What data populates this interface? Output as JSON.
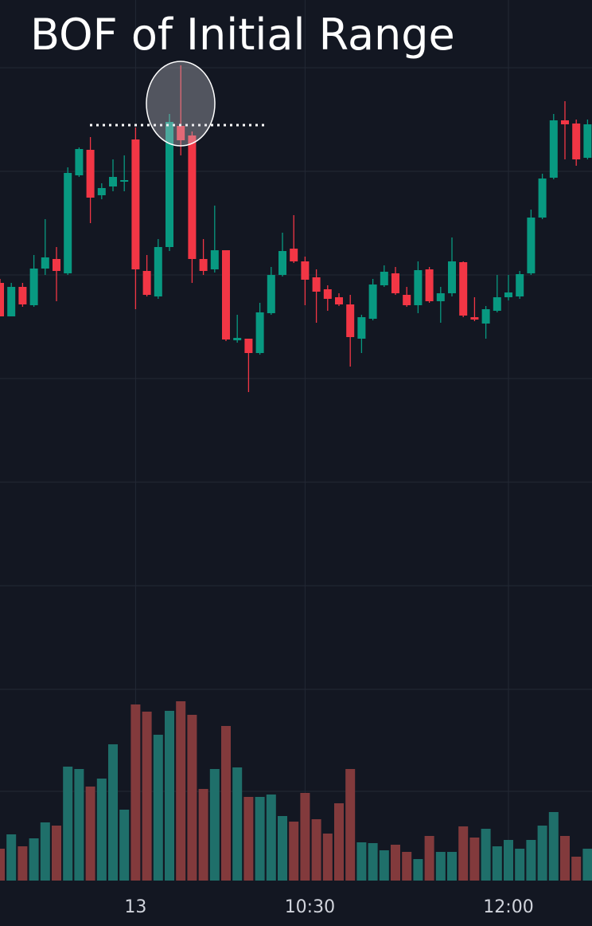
{
  "chart_data": {
    "type": "candlestick",
    "title": "BOF of Initial Range",
    "categories": [
      null,
      null,
      null,
      null,
      null,
      null,
      null,
      null,
      null,
      null,
      null,
      null,
      "13",
      null,
      null,
      null,
      null,
      null,
      null,
      null,
      null,
      null,
      null,
      null,
      null,
      null,
      null,
      "10:30",
      null,
      null,
      null,
      null,
      null,
      null,
      null,
      null,
      null,
      null,
      null,
      null,
      null,
      null,
      null,
      null,
      null,
      "12:00",
      null,
      null,
      null,
      null,
      null,
      null,
      null
    ],
    "open": [
      845,
      803,
      840,
      817,
      863,
      875,
      857,
      980,
      1012,
      955,
      966,
      972,
      1025,
      860,
      828,
      890,
      1042,
      1030,
      875,
      862,
      886,
      773,
      775,
      757,
      807,
      855,
      888,
      872,
      852,
      837,
      827,
      818,
      775,
      800,
      842,
      857,
      830,
      817,
      862,
      822,
      832,
      871,
      802,
      794,
      810,
      827,
      828,
      857,
      927,
      977,
      1049,
      1045,
      1002
    ],
    "high": [
      850,
      845,
      845,
      880,
      925,
      890,
      990,
      1015,
      1028,
      970,
      1000,
      1005,
      1040,
      880,
      900,
      1057,
      1118,
      1035,
      900,
      942,
      886,
      805,
      775,
      820,
      865,
      908,
      930,
      878,
      862,
      842,
      832,
      830,
      805,
      850,
      867,
      865,
      840,
      872,
      865,
      840,
      902,
      872,
      827,
      816,
      855,
      855,
      860,
      937,
      982,
      1057,
      1073,
      1050,
      1050
    ],
    "low": [
      803,
      803,
      815,
      815,
      855,
      822,
      855,
      978,
      920,
      950,
      960,
      960,
      812,
      828,
      825,
      885,
      1005,
      845,
      855,
      858,
      772,
      770,
      708,
      755,
      805,
      853,
      870,
      817,
      795,
      810,
      816,
      740,
      757,
      798,
      840,
      830,
      815,
      807,
      820,
      795,
      828,
      802,
      797,
      775,
      808,
      823,
      825,
      855,
      925,
      975,
      1000,
      992,
      1000
    ],
    "close": [
      803,
      840,
      818,
      863,
      877,
      860,
      983,
      1013,
      952,
      964,
      978,
      974,
      862,
      830,
      890,
      1047,
      1024,
      875,
      860,
      886,
      774,
      776,
      757,
      808,
      855,
      885,
      872,
      849,
      834,
      825,
      818,
      777,
      802,
      843,
      859,
      832,
      817,
      861,
      822,
      832,
      872,
      804,
      799,
      812,
      827,
      833,
      856,
      927,
      976,
      1049,
      1044,
      1000,
      1044
    ],
    "volume": [
      40,
      58,
      43,
      53,
      73,
      69,
      143,
      140,
      118,
      128,
      171,
      89,
      221,
      212,
      183,
      213,
      225,
      208,
      115,
      140,
      194,
      142,
      105,
      105,
      108,
      81,
      74,
      110,
      77,
      59,
      97,
      140,
      48,
      47,
      38,
      45,
      36,
      27,
      56,
      36,
      36,
      68,
      54,
      65,
      43,
      51,
      40,
      51,
      69,
      86,
      56,
      30,
      40
    ],
    "ylim": [
      95,
      1200
    ],
    "volume_ylim": [
      0,
      250
    ],
    "level": 1043,
    "up_color": "#089981",
    "down_color": "#f23645",
    "volume_up_color": "#1f6f6a",
    "volume_down_color": "#823a3c"
  }
}
